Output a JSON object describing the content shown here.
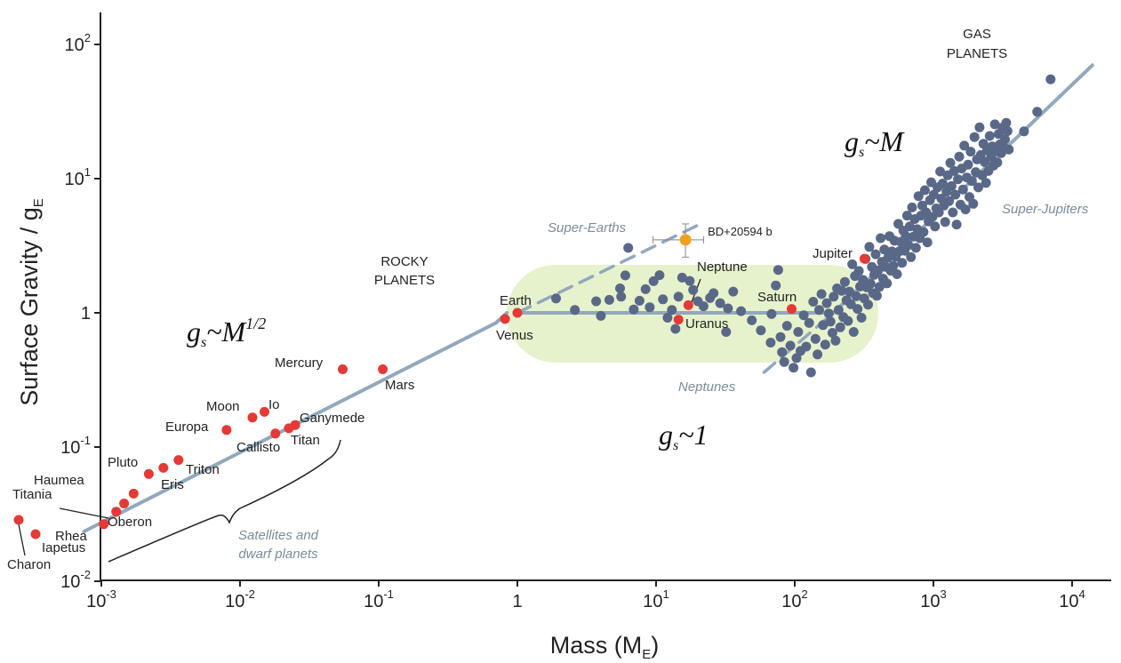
{
  "chart_data": {
    "type": "scatter",
    "xlabel": "Mass (M",
    "xlabel_sub": "E",
    "xlabel_close": ")",
    "ylabel": "Surface Gravity / g",
    "ylabel_sub": "E",
    "x_scale": "log",
    "y_scale": "log",
    "xlim": [
      0.00075,
      17000
    ],
    "ylim": [
      0.0095,
      180
    ],
    "grid": false,
    "x_ticks": [
      {
        "value": 0.001,
        "base": "10",
        "exp": "-3"
      },
      {
        "value": 0.01,
        "base": "10",
        "exp": "-2"
      },
      {
        "value": 0.1,
        "base": "10",
        "exp": "-1"
      },
      {
        "value": 1,
        "base": "1",
        "exp": ""
      },
      {
        "value": 10,
        "base": "10",
        "exp": "1"
      },
      {
        "value": 100,
        "base": "10",
        "exp": "2"
      },
      {
        "value": 1000,
        "base": "10",
        "exp": "3"
      },
      {
        "value": 10000,
        "base": "10",
        "exp": "4"
      }
    ],
    "y_ticks": [
      {
        "value": 0.01,
        "base": "10",
        "exp": "-2"
      },
      {
        "value": 0.1,
        "base": "10",
        "exp": "-1"
      },
      {
        "value": 1,
        "base": "1",
        "exp": ""
      },
      {
        "value": 10,
        "base": "10",
        "exp": "1"
      },
      {
        "value": 100,
        "base": "10",
        "exp": "2"
      }
    ],
    "colors": {
      "solar_system": "#e53935",
      "exoplanets": "#5a6887",
      "fit_line": "#91a8bd",
      "highlight": "#f0a020",
      "neptunes_region": "#e6f2cc",
      "region_label": "#7a8c99"
    },
    "region_labels": {
      "rocky": [
        "ROCKY",
        "PLANETS"
      ],
      "gas": [
        "GAS",
        "PLANETS"
      ],
      "super_earths": "Super-Earths",
      "super_jupiters": "Super-Jupiters",
      "neptunes": "Neptunes",
      "satellites": [
        "Satellites and",
        "dwarf planets"
      ]
    },
    "law_labels": {
      "sqrt": {
        "base": "g",
        "sub": "s",
        "rest": "~M",
        "sup": "1/2"
      },
      "flat": {
        "base": "g",
        "sub": "s",
        "rest": "~1"
      },
      "linear": {
        "base": "g",
        "sub": "s",
        "rest": "~M"
      }
    },
    "fit_lines": [
      {
        "name": "",
        "style": "solid",
        "points": [
          [
            0.00075,
            0.0235
          ],
          [
            0.7,
            0.84
          ]
        ]
      },
      {
        "name": "",
        "style": "solid",
        "points": [
          [
            0.7,
            0.84
          ],
          [
            0.84,
            1.0
          ]
        ]
      },
      {
        "name": "",
        "style": "solid",
        "points": [
          [
            1.0,
            1.0
          ],
          [
            190,
            1.0
          ]
        ]
      },
      {
        "name": "",
        "style": "solid",
        "points": [
          [
            190,
            1.0
          ],
          [
            14000,
            70
          ]
        ]
      },
      {
        "name": "",
        "style": "dashed",
        "points": [
          [
            1.0,
            1.0
          ],
          [
            20,
            4.5
          ]
        ]
      },
      {
        "name": "",
        "style": "dashed",
        "points": [
          [
            60,
            0.36
          ],
          [
            190,
            1.0
          ]
        ]
      }
    ],
    "solar_system": [
      {
        "label": "Charon",
        "x": 0.00081,
        "y": 0.029
      },
      {
        "label": "Iapetus",
        "x": 0.0003,
        "y": 0.03,
        "hidden_x": 0.00091,
        "hy": 0.024
      },
      {
        "label": "Rhea",
        "x": 0.00104,
        "y": 0.0266
      },
      {
        "label": "Titania",
        "x": 0.00146,
        "y": 0.038
      },
      {
        "label": "Oberon",
        "x": 0.00128,
        "y": 0.033
      },
      {
        "label": "Haumea",
        "x": 0.00171,
        "y": 0.045
      },
      {
        "label": "Pluto",
        "x": 0.0022,
        "y": 0.063
      },
      {
        "label": "Eris",
        "x": 0.0028,
        "y": 0.07
      },
      {
        "label": "Triton",
        "x": 0.0036,
        "y": 0.08
      },
      {
        "label": "Europa",
        "x": 0.008,
        "y": 0.134
      },
      {
        "label": "Moon",
        "x": 0.0123,
        "y": 0.166
      },
      {
        "label": "Io",
        "x": 0.015,
        "y": 0.183
      },
      {
        "label": "Callisto",
        "x": 0.018,
        "y": 0.126
      },
      {
        "label": "Titan",
        "x": 0.0225,
        "y": 0.138
      },
      {
        "label": "Ganymede",
        "x": 0.025,
        "y": 0.146
      },
      {
        "label": "Mercury",
        "x": 0.055,
        "y": 0.38
      },
      {
        "label": "Mars",
        "x": 0.107,
        "y": 0.38
      },
      {
        "label": "Venus",
        "x": 0.815,
        "y": 0.9
      },
      {
        "label": "Earth",
        "x": 1.0,
        "y": 1.0
      },
      {
        "label": "Uranus",
        "x": 14.5,
        "y": 0.89
      },
      {
        "label": "Neptune",
        "x": 17.1,
        "y": 1.14
      },
      {
        "label": "Saturn",
        "x": 95,
        "y": 1.07
      },
      {
        "label": "Jupiter",
        "x": 318,
        "y": 2.53
      }
    ],
    "highlight_planet": {
      "label": "BD+20594 b",
      "x": 16.3,
      "y": 3.5,
      "x_err": [
        9.5,
        22
      ],
      "y_err": [
        2.6,
        4.6
      ]
    },
    "exoplanets": {
      "name": "",
      "points": [
        [
          1.9,
          1.28
        ],
        [
          2.6,
          1.05
        ],
        [
          4.0,
          0.95
        ],
        [
          3.7,
          1.22
        ],
        [
          4.6,
          1.25
        ],
        [
          5.6,
          1.32
        ],
        [
          6.0,
          1.9
        ],
        [
          6.3,
          3.05
        ],
        [
          6.9,
          1.06
        ],
        [
          5.5,
          1.52
        ],
        [
          7.6,
          1.23
        ],
        [
          8.4,
          1.5
        ],
        [
          9.0,
          1.1
        ],
        [
          9.6,
          1.72
        ],
        [
          10.6,
          1.91
        ],
        [
          11.2,
          1.26
        ],
        [
          12.1,
          0.92
        ],
        [
          13.0,
          1.05
        ],
        [
          13.8,
          0.76
        ],
        [
          14.5,
          1.32
        ],
        [
          15.4,
          1.83
        ],
        [
          17.5,
          1.73
        ],
        [
          18.5,
          1.48
        ],
        [
          20.0,
          1.22
        ],
        [
          22.0,
          1.12
        ],
        [
          24.5,
          1.29
        ],
        [
          26.0,
          1.4
        ],
        [
          29.0,
          1.18
        ],
        [
          32.0,
          0.72
        ],
        [
          33.0,
          1.08
        ],
        [
          36.0,
          1.44
        ],
        [
          41.0,
          1.03
        ],
        [
          49.0,
          0.88
        ],
        [
          57.0,
          0.74
        ],
        [
          67.0,
          0.6
        ],
        [
          68.0,
          0.98
        ],
        [
          73.0,
          1.6
        ],
        [
          76.0,
          2.09
        ],
        [
          79.0,
          0.66
        ],
        [
          81.0,
          0.51
        ],
        [
          84.0,
          0.43
        ],
        [
          88.0,
          0.8
        ],
        [
          93.0,
          0.57
        ],
        [
          98.0,
          0.39
        ],
        [
          103.0,
          0.46
        ],
        [
          106.0,
          0.72
        ],
        [
          110.0,
          0.52
        ],
        [
          116.0,
          0.96
        ],
        [
          121.0,
          0.56
        ],
        [
          127.0,
          0.84
        ],
        [
          131.0,
          0.36
        ],
        [
          136.0,
          1.21
        ],
        [
          141.0,
          0.64
        ],
        [
          146.0,
          0.49
        ],
        [
          150.0,
          1.05
        ],
        [
          156.0,
          1.38
        ],
        [
          160.0,
          0.81
        ],
        [
          166.0,
          0.58
        ],
        [
          170.0,
          1.18
        ],
        [
          176.0,
          0.99
        ],
        [
          181.0,
          0.86
        ],
        [
          187.0,
          0.71
        ],
        [
          191.0,
          1.32
        ],
        [
          197.0,
          0.62
        ],
        [
          202.0,
          1.52
        ],
        [
          207.0,
          1.05
        ],
        [
          213.0,
          0.78
        ],
        [
          218.0,
          1.46
        ],
        [
          224.0,
          0.93
        ],
        [
          230.0,
          1.7
        ],
        [
          236.0,
          1.24
        ],
        [
          242.0,
          0.87
        ],
        [
          248.0,
          1.44
        ],
        [
          254.0,
          1.16
        ],
        [
          260.0,
          2.3
        ],
        [
          266.0,
          0.72
        ],
        [
          272.0,
          1.88
        ],
        [
          278.0,
          1.33
        ],
        [
          284.0,
          1.07
        ],
        [
          290.0,
          2.05
        ],
        [
          296.0,
          1.57
        ],
        [
          303.0,
          0.92
        ],
        [
          310.0,
          1.76
        ],
        [
          317.0,
          1.28
        ],
        [
          324.0,
          2.52
        ],
        [
          331.0,
          1.55
        ],
        [
          338.0,
          1.15
        ],
        [
          345.0,
          3.1
        ],
        [
          352.0,
          1.65
        ],
        [
          360.0,
          2.2
        ],
        [
          367.0,
          1.4
        ],
        [
          375.0,
          1.92
        ],
        [
          383.0,
          2.73
        ],
        [
          391.0,
          1.34
        ],
        [
          399.0,
          2.07
        ],
        [
          408.0,
          1.56
        ],
        [
          416.0,
          3.6
        ],
        [
          425.0,
          2.4
        ],
        [
          434.0,
          1.8
        ],
        [
          443.0,
          2.96
        ],
        [
          452.0,
          2.2
        ],
        [
          462.0,
          1.66
        ],
        [
          472.0,
          2.58
        ],
        [
          482.0,
          3.72
        ],
        [
          492.0,
          2.06
        ],
        [
          502.0,
          2.87
        ],
        [
          513.0,
          2.24
        ],
        [
          524.0,
          3.45
        ],
        [
          535.0,
          2.62
        ],
        [
          546.0,
          1.94
        ],
        [
          558.0,
          4.6
        ],
        [
          570.0,
          2.88
        ],
        [
          582.0,
          3.38
        ],
        [
          594.0,
          2.36
        ],
        [
          606.0,
          4.1
        ],
        [
          619.0,
          2.9
        ],
        [
          632.0,
          3.72
        ],
        [
          646.0,
          5.3
        ],
        [
          660.0,
          3.2
        ],
        [
          674.0,
          4.4
        ],
        [
          688.0,
          2.6
        ],
        [
          702.0,
          6.1
        ],
        [
          717.0,
          3.7
        ],
        [
          733.0,
          5.0
        ],
        [
          748.0,
          3.05
        ],
        [
          764.0,
          4.2
        ],
        [
          781.0,
          7.4
        ],
        [
          797.0,
          3.6
        ],
        [
          814.0,
          5.3
        ],
        [
          832.0,
          6.3
        ],
        [
          849.0,
          4.0
        ],
        [
          868.0,
          8.2
        ],
        [
          886.0,
          5.6
        ],
        [
          905.0,
          3.35
        ],
        [
          924.0,
          4.8
        ],
        [
          944.0,
          6.9
        ],
        [
          964.0,
          9.4
        ],
        [
          985.0,
          5.2
        ],
        [
          1006.0,
          7.6
        ],
        [
          1027.0,
          4.4
        ],
        [
          1049.0,
          6.0
        ],
        [
          1071.0,
          8.6
        ],
        [
          1094.0,
          5.6
        ],
        [
          1118.0,
          11.3
        ],
        [
          1141.0,
          7.1
        ],
        [
          1166.0,
          9.2
        ],
        [
          1191.0,
          6.3
        ],
        [
          1216.0,
          4.75
        ],
        [
          1242.0,
          8.0
        ],
        [
          1268.0,
          10.6
        ],
        [
          1295.0,
          6.8
        ],
        [
          1323.0,
          13.1
        ],
        [
          1351.0,
          8.8
        ],
        [
          1380.0,
          5.6
        ],
        [
          1410.0,
          11.4
        ],
        [
          1440.0,
          7.6
        ],
        [
          1471.0,
          4.55
        ],
        [
          1502.0,
          9.9
        ],
        [
          1534.0,
          14.6
        ],
        [
          1567.0,
          6.4
        ],
        [
          1600.0,
          11.9
        ],
        [
          1635.0,
          8.3
        ],
        [
          1670.0,
          17.6
        ],
        [
          1705.0,
          5.9
        ],
        [
          1742.0,
          10.2
        ],
        [
          1779.0,
          12.7
        ],
        [
          1817.0,
          7.3
        ],
        [
          1856.0,
          15.9
        ],
        [
          1895.0,
          9.6
        ],
        [
          1936.0,
          6.5
        ],
        [
          1977.0,
          20.4
        ],
        [
          2019.0,
          11.2
        ],
        [
          2062.0,
          13.9
        ],
        [
          2106.0,
          8.6
        ],
        [
          2151.0,
          24.1
        ],
        [
          2197.0,
          15.0
        ],
        [
          2244.0,
          10.6
        ],
        [
          2292.0,
          18.2
        ],
        [
          2341.0,
          13.3
        ],
        [
          2391.0,
          9.3
        ],
        [
          2442.0,
          16.4
        ],
        [
          2494.0,
          11.4
        ],
        [
          2547.0,
          20.8
        ],
        [
          2602.0,
          14.6
        ],
        [
          2657.0,
          17.4
        ],
        [
          2714.0,
          12.5
        ],
        [
          2772.0,
          25.4
        ],
        [
          2831.0,
          16.1
        ],
        [
          2891.0,
          13.2
        ],
        [
          2953.0,
          21.5
        ],
        [
          3016.0,
          18.0
        ],
        [
          3080.0,
          15.5
        ],
        [
          3146.0,
          24.0
        ],
        [
          3213.0,
          17.1
        ],
        [
          3281.0,
          19.6
        ],
        [
          3351.0,
          26.0
        ],
        [
          3423.0,
          22.6
        ],
        [
          3496.0,
          16.5
        ],
        [
          4500.0,
          22.5
        ],
        [
          5600.0,
          31.5
        ],
        [
          7000.0,
          55.0
        ]
      ]
    }
  }
}
